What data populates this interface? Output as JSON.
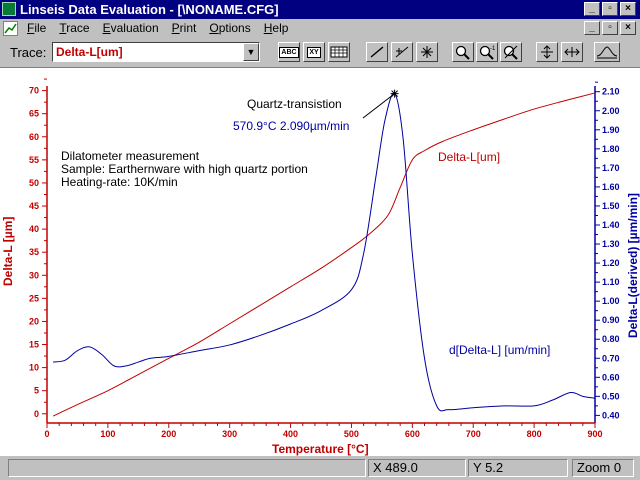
{
  "window": {
    "title": "Linseis Data Evaluation - [\\NONAME.CFG]",
    "minimize": "_",
    "maximize": "▫",
    "close": "×"
  },
  "menu": {
    "items": [
      "File",
      "Trace",
      "Evaluation",
      "Print",
      "Options",
      "Help"
    ]
  },
  "mdi_controls": {
    "minimize": "_",
    "restore": "▫",
    "close": "×"
  },
  "toolbar": {
    "trace_label": "Trace:",
    "trace_value": "Delta-L[um]",
    "btn_text_abc": "ABC",
    "btn_text_xy": "XY"
  },
  "annotations": {
    "peak_label": "Quartz-transistion",
    "peak_values": "570.9°C   2.090µm/min",
    "description": [
      "Dilatometer measurement",
      "Sample: Earthernware with high quartz portion",
      "Heating-rate: 10K/min"
    ],
    "delta_label": "Delta-L[um]",
    "derived_label": "d[Delta-L] [um/min]"
  },
  "colors": {
    "left_axis": "#c00000",
    "right_axis": "#0000a0",
    "delta_curve": "#c00000",
    "derived_curve": "#0000a0"
  },
  "status": {
    "x_label": "X",
    "x_value": "489.0",
    "y_label": "Y",
    "y_value": "5.2",
    "zoom_label": "Zoom",
    "zoom_value": "0"
  },
  "chart_data": {
    "type": "line",
    "xlabel": "Temperature [°C]",
    "ylabel": "Delta-L  [µm]",
    "y2label": "Delta-L(derived)  [µm/min]",
    "xlim": [
      0,
      900
    ],
    "ylim": [
      -2,
      71
    ],
    "y2lim": [
      0.36,
      2.13
    ],
    "x_ticks": [
      0,
      100,
      200,
      300,
      400,
      500,
      600,
      700,
      800,
      900
    ],
    "y_ticks": [
      0,
      5,
      10,
      15,
      20,
      25,
      30,
      35,
      40,
      45,
      50,
      55,
      60,
      65,
      70
    ],
    "y2_ticks": [
      "0.40",
      "0.50",
      "0.60",
      "0.70",
      "0.80",
      "0.90",
      "1.00",
      "1.10",
      "1.20",
      "1.30",
      "1.40",
      "1.50",
      "1.60",
      "1.70",
      "1.80",
      "1.90",
      "2.00",
      "2.10"
    ],
    "peak": {
      "x": 570.9,
      "y": 2.09
    },
    "series": [
      {
        "name": "Delta-L[um]",
        "axis": "left",
        "x": [
          10,
          50,
          100,
          150,
          200,
          250,
          300,
          350,
          400,
          450,
          500,
          530,
          560,
          580,
          600,
          620,
          650,
          700,
          750,
          800,
          850,
          900
        ],
        "values": [
          -0.5,
          2,
          5,
          8.5,
          12,
          15.5,
          19.5,
          23.5,
          27.5,
          31.5,
          36,
          39,
          43,
          49,
          55,
          57,
          59,
          61.5,
          63.8,
          66,
          67.8,
          69.5
        ]
      },
      {
        "name": "d[Delta-L] [um/min]",
        "axis": "right",
        "x": [
          10,
          30,
          50,
          70,
          90,
          110,
          130,
          150,
          170,
          200,
          250,
          300,
          350,
          400,
          450,
          500,
          520,
          540,
          555,
          571,
          585,
          600,
          620,
          640,
          660,
          700,
          750,
          800,
          830,
          860,
          880,
          900
        ],
        "values": [
          0.68,
          0.69,
          0.74,
          0.76,
          0.72,
          0.66,
          0.66,
          0.68,
          0.7,
          0.71,
          0.74,
          0.77,
          0.82,
          0.88,
          0.95,
          1.06,
          1.25,
          1.65,
          1.95,
          2.09,
          1.85,
          1.25,
          0.7,
          0.45,
          0.43,
          0.44,
          0.45,
          0.45,
          0.48,
          0.52,
          0.5,
          0.49
        ]
      }
    ]
  }
}
